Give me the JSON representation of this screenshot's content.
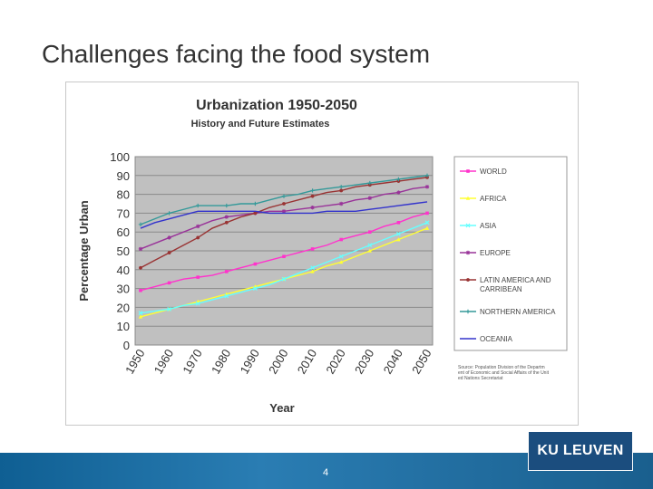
{
  "slide": {
    "title": "Challenges facing the food system",
    "page_number": "4",
    "logo_text": "KU LEUVEN"
  },
  "chart_data": {
    "type": "line",
    "title": "Urbanization 1950-2050",
    "subtitle": "History and Future Estimates",
    "xlabel": "Year",
    "ylabel": "Percentage Urban",
    "ylim": [
      0,
      100
    ],
    "yticks": [
      0,
      10,
      20,
      30,
      40,
      50,
      60,
      70,
      80,
      90,
      100
    ],
    "xticks": [
      1950,
      1960,
      1970,
      1980,
      1990,
      2000,
      2010,
      2020,
      2030,
      2040,
      2050
    ],
    "grid": true,
    "legend_position": "right",
    "source_note": "Source: Population Division of the Department of Economic and Social Affairs of the United Nations Secretariat",
    "x": [
      1950,
      1955,
      1960,
      1965,
      1970,
      1975,
      1980,
      1985,
      1990,
      1995,
      2000,
      2005,
      2010,
      2015,
      2020,
      2025,
      2030,
      2035,
      2040,
      2045,
      2050
    ],
    "series": [
      {
        "name": "WORLD",
        "color": "#ff33cc",
        "marker": "square",
        "values": [
          29,
          31,
          33,
          35,
          36,
          37,
          39,
          41,
          43,
          45,
          47,
          49,
          51,
          53,
          56,
          58,
          60,
          63,
          65,
          68,
          70
        ]
      },
      {
        "name": "AFRICA",
        "color": "#ffff33",
        "marker": "triangle",
        "values": [
          15,
          17,
          19,
          21,
          23,
          25,
          27,
          29,
          31,
          33,
          35,
          37,
          39,
          42,
          44,
          47,
          50,
          53,
          56,
          59,
          62
        ]
      },
      {
        "name": "ASIA",
        "color": "#66ffff",
        "marker": "x",
        "values": [
          17,
          18,
          19,
          21,
          22,
          24,
          26,
          28,
          30,
          32,
          35,
          38,
          41,
          44,
          47,
          50,
          53,
          56,
          59,
          62,
          65
        ]
      },
      {
        "name": "EUROPE",
        "color": "#993399",
        "marker": "star",
        "values": [
          51,
          54,
          57,
          60,
          63,
          66,
          68,
          69,
          70,
          71,
          71,
          72,
          73,
          74,
          75,
          77,
          78,
          80,
          81,
          83,
          84
        ]
      },
      {
        "name": "LATIN AMERICA AND CARRIBEAN",
        "color": "#993333",
        "marker": "circle",
        "values": [
          41,
          45,
          49,
          53,
          57,
          62,
          65,
          68,
          70,
          73,
          75,
          77,
          79,
          81,
          82,
          84,
          85,
          86,
          87,
          88,
          89
        ]
      },
      {
        "name": "NORTHERN AMERICA",
        "color": "#339999",
        "marker": "plus",
        "values": [
          64,
          67,
          70,
          72,
          74,
          74,
          74,
          75,
          75,
          77,
          79,
          80,
          82,
          83,
          84,
          85,
          86,
          87,
          88,
          89,
          90
        ]
      },
      {
        "name": "OCEANIA",
        "color": "#3333cc",
        "marker": "none",
        "values": [
          62,
          65,
          67,
          69,
          71,
          71,
          71,
          71,
          71,
          70,
          70,
          70,
          70,
          71,
          71,
          71,
          72,
          73,
          74,
          75,
          76
        ]
      }
    ]
  }
}
